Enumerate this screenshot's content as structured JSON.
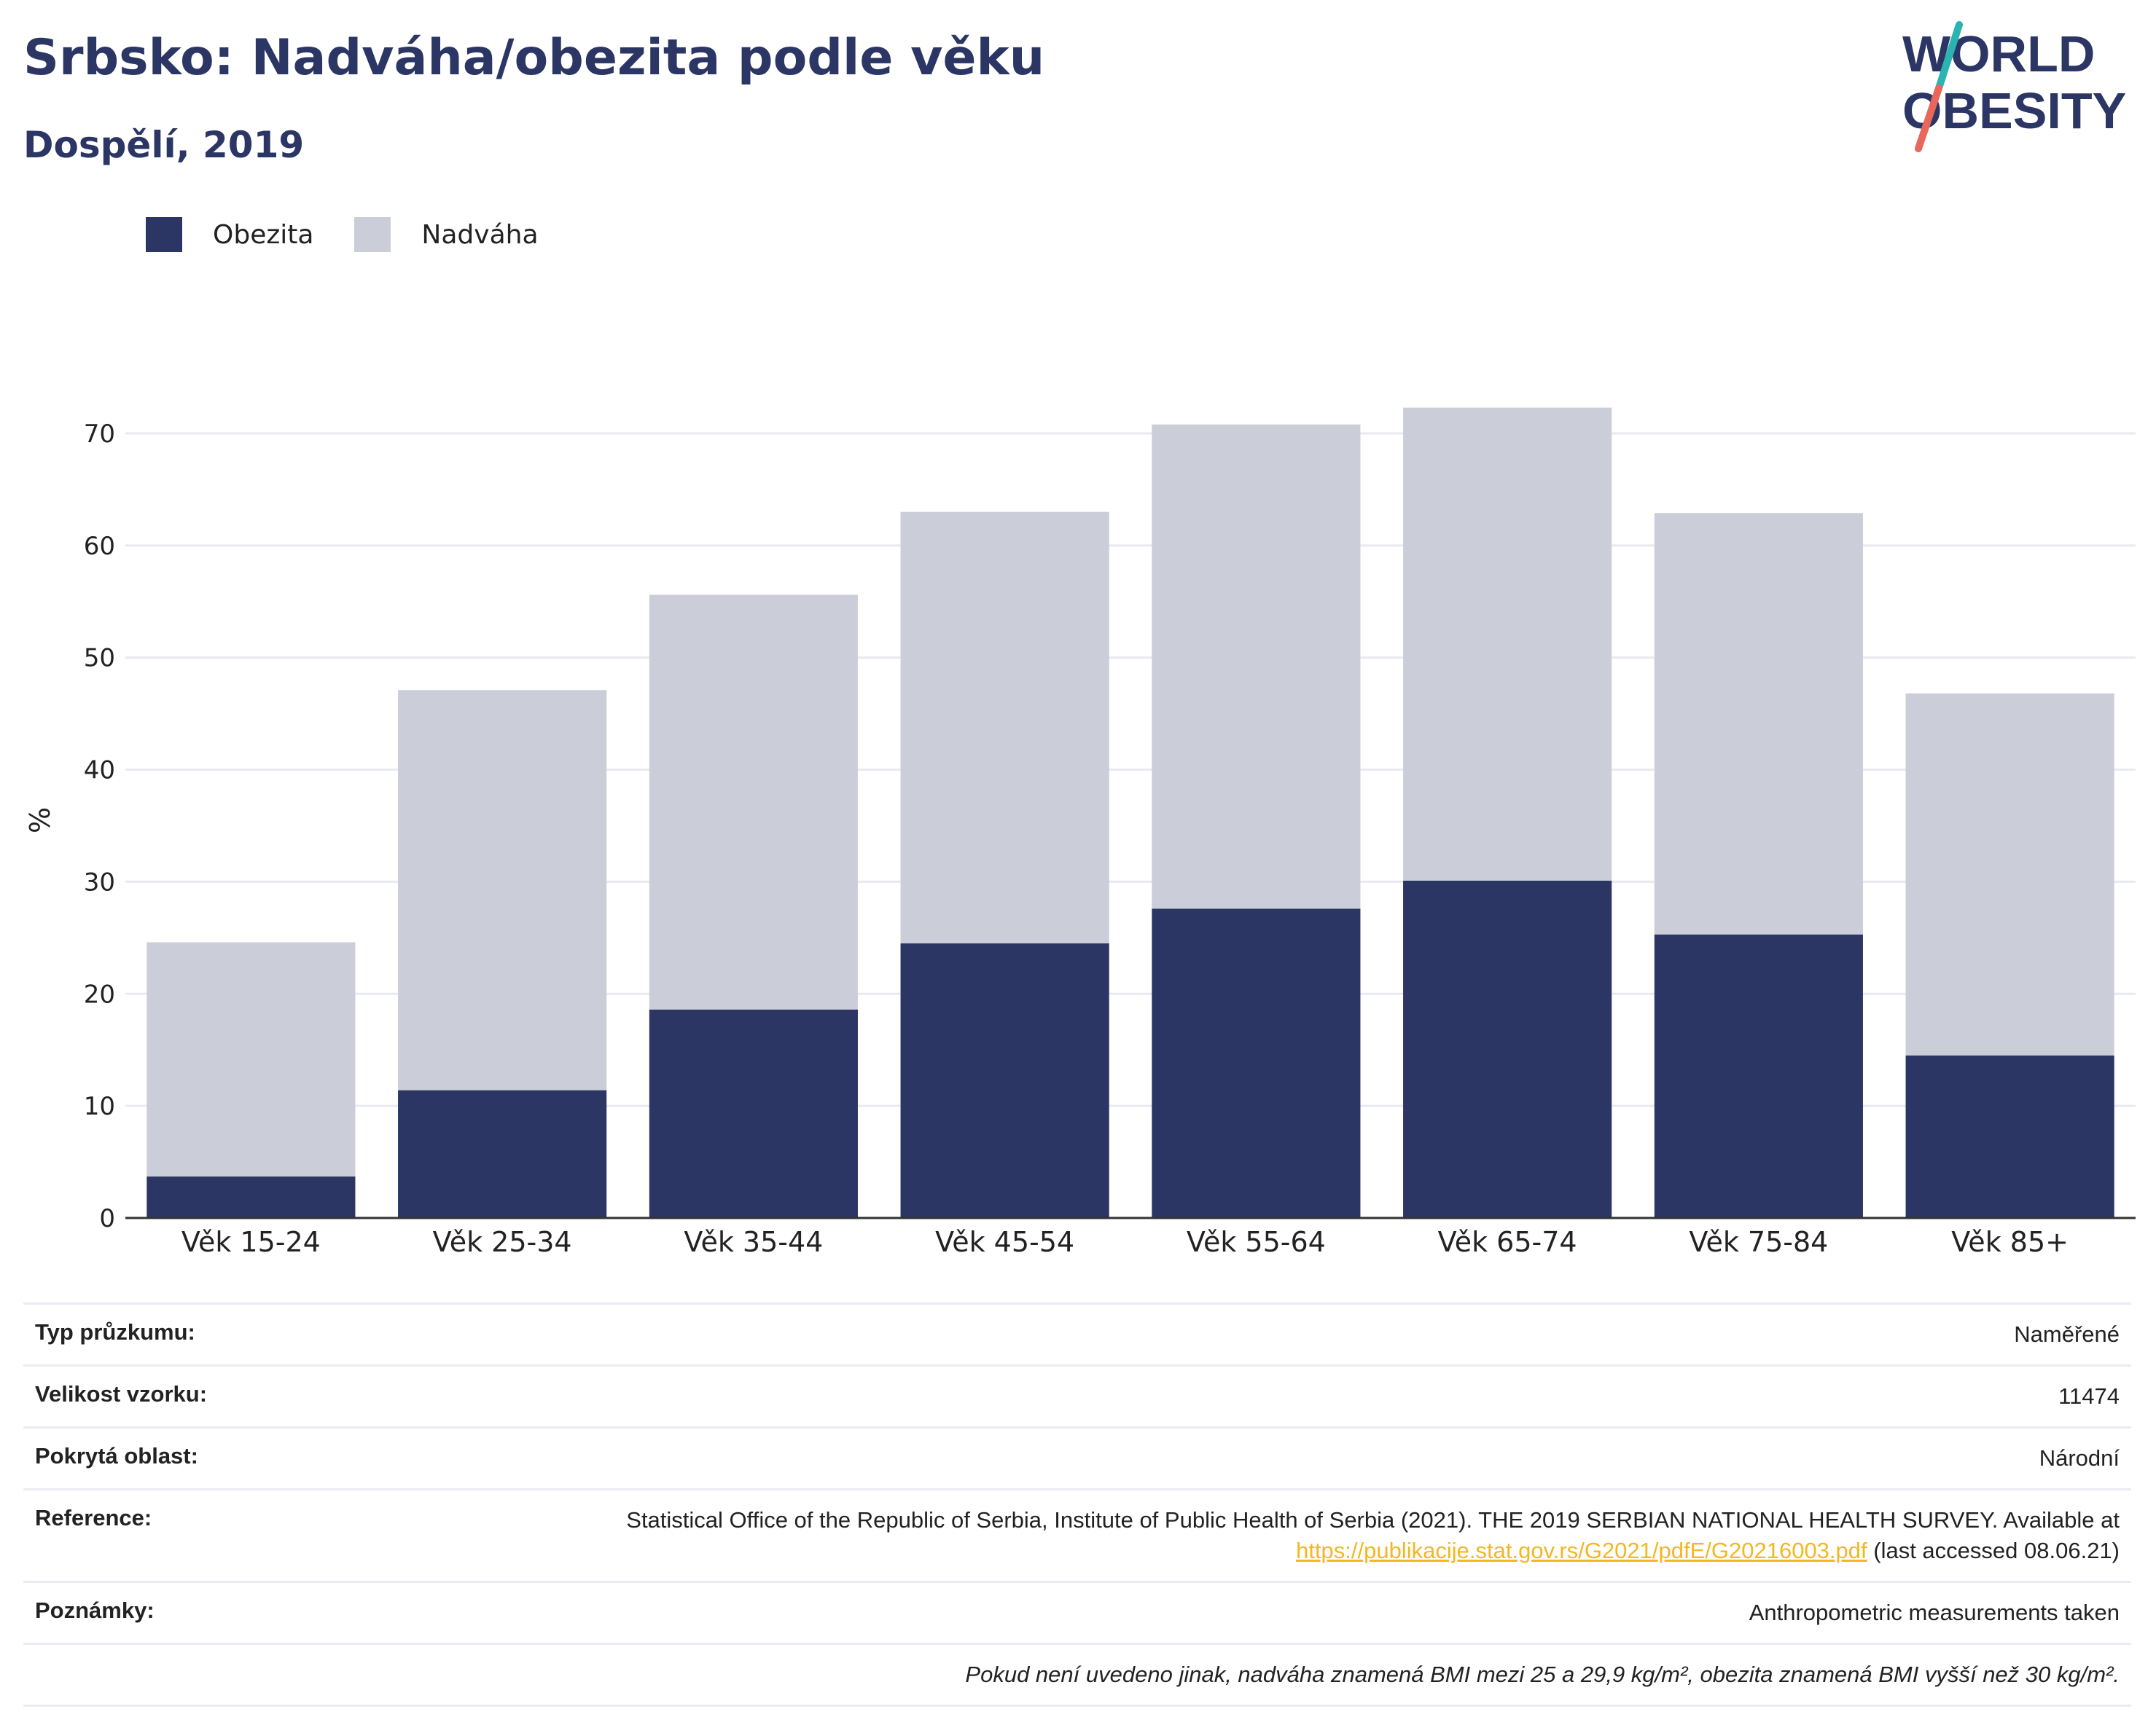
{
  "header": {
    "title": "Srbsko: Nadváha/obezita podle věku",
    "subtitle": "Dospělí, 2019"
  },
  "logo": {
    "line1": "WORLD",
    "line2": "OBESITY",
    "colors": {
      "text": "#2b3664",
      "slash_top": "#2ab3b1",
      "slash_bottom": "#e8675a"
    }
  },
  "chart_data": {
    "type": "bar",
    "stacked": true,
    "categories": [
      "Věk 15-24",
      "Věk 25-34",
      "Věk 35-44",
      "Věk 45-54",
      "Věk 55-64",
      "Věk 65-74",
      "Věk 75-84",
      "Věk 85+"
    ],
    "series": [
      {
        "name": "Obezita",
        "color": "#2b3664",
        "values": [
          3.7,
          11.4,
          18.6,
          24.5,
          27.6,
          30.1,
          25.3,
          14.5
        ]
      },
      {
        "name": "Nadváha",
        "color": "#cbcdd9",
        "values": [
          20.9,
          35.7,
          37.0,
          38.5,
          43.2,
          42.2,
          37.6,
          32.3
        ]
      }
    ],
    "ylabel": "%",
    "xlabel": "",
    "ylim": [
      0,
      70
    ],
    "yticks": [
      0,
      10,
      20,
      30,
      40,
      50,
      60,
      70
    ],
    "grid": true,
    "legend_position": "top-left"
  },
  "info": {
    "rows": [
      {
        "label": "Typ průzkumu:",
        "value": "Naměřené"
      },
      {
        "label": "Velikost vzorku:",
        "value": "11474"
      },
      {
        "label": "Pokrytá oblast:",
        "value": "Národní"
      }
    ],
    "reference": {
      "label": "Reference:",
      "text_before": "Statistical Office of the Republic of Serbia, Institute of Public Health of Serbia (2021). THE 2019 SERBIAN NATIONAL HEALTH SURVEY. Available at ",
      "link": "https://publikacije.stat.gov.rs/G2021/pdfE/G20216003.pdf",
      "text_after": " (last accessed 08.06.21)"
    },
    "notes": {
      "label": "Poznámky:",
      "value": "Anthropometric measurements taken"
    },
    "footnote": "Pokud není uvedeno jinak, nadváha znamená BMI mezi 25 a 29,9 kg/m², obezita znamená BMI vyšší než 30 kg/m²."
  }
}
